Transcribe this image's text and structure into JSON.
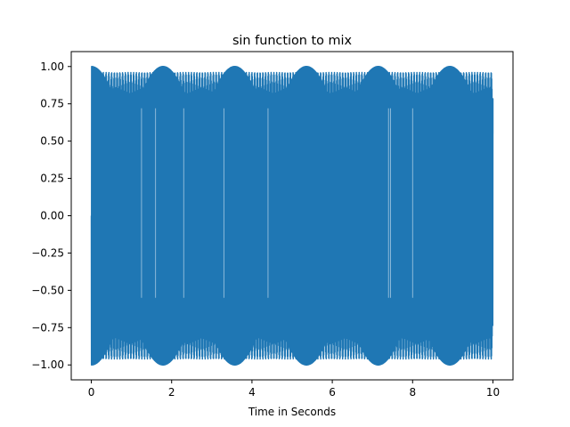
{
  "chart_data": {
    "type": "line",
    "title": "sin function to mix",
    "xlabel": "Time in Seconds",
    "ylabel": "",
    "xlim": [
      -0.5,
      10.5
    ],
    "ylim": [
      -1.1,
      1.1
    ],
    "xticks": [
      0,
      2,
      4,
      6,
      8,
      10
    ],
    "xtick_labels": [
      "0",
      "2",
      "4",
      "6",
      "8",
      "10"
    ],
    "yticks": [
      1.0,
      0.75,
      0.5,
      0.25,
      0.0,
      -0.25,
      -0.5,
      -0.75,
      -1.0
    ],
    "ytick_labels": [
      "1.00",
      "0.75",
      "0.50",
      "0.25",
      "0.00",
      "−0.25",
      "−0.50",
      "−0.75",
      "−1.00"
    ],
    "grid": false,
    "legend": "none",
    "series": [
      {
        "color": "#1f77b4",
        "x_range": [
          0,
          10
        ],
        "y_range": [
          -1.0,
          1.0
        ],
        "description_values": {
          "start_y": 0.0,
          "end_y": 0.55,
          "amplitude": 1.0
        }
      }
    ]
  }
}
